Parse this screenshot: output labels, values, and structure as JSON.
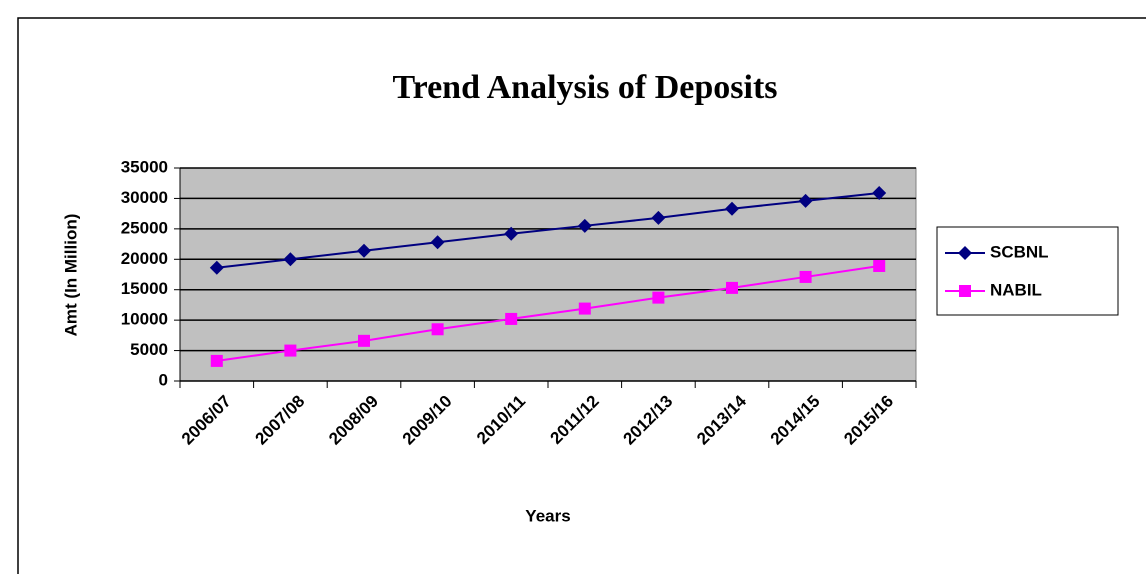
{
  "chart_data": {
    "type": "line",
    "title": "Trend Analysis of Deposits",
    "x_label": "Years",
    "y_label": "Amt (In Million)",
    "categories": [
      "2006/07",
      "2007/08",
      "2008/09",
      "2009/10",
      "2010/11",
      "2011/12",
      "2012/13",
      "2013/14",
      "2014/15",
      "2015/16"
    ],
    "series": [
      {
        "name": "SCBNL",
        "color": "#000080",
        "marker": "diamond",
        "values": [
          18600,
          20000,
          21400,
          22800,
          24200,
          25500,
          26800,
          28300,
          29600,
          30900
        ]
      },
      {
        "name": "NABIL",
        "color": "#ff00ff",
        "marker": "square",
        "values": [
          3300,
          5000,
          6600,
          8500,
          10200,
          11900,
          13700,
          15300,
          17100,
          18900
        ]
      }
    ],
    "ylim": [
      0,
      35000
    ],
    "yticks": [
      0,
      5000,
      10000,
      15000,
      20000,
      25000,
      30000,
      35000
    ],
    "grid": true,
    "legend": "right"
  }
}
